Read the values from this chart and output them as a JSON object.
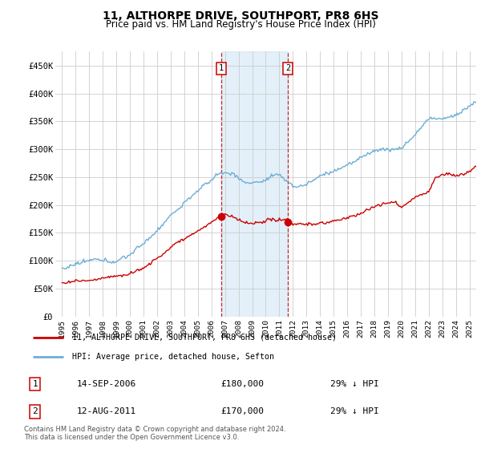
{
  "title": "11, ALTHORPE DRIVE, SOUTHPORT, PR8 6HS",
  "subtitle": "Price paid vs. HM Land Registry's House Price Index (HPI)",
  "title_fontsize": 10,
  "subtitle_fontsize": 8.5,
  "ylabel_ticks": [
    "£0",
    "£50K",
    "£100K",
    "£150K",
    "£200K",
    "£250K",
    "£300K",
    "£350K",
    "£400K",
    "£450K"
  ],
  "ytick_values": [
    0,
    50000,
    100000,
    150000,
    200000,
    250000,
    300000,
    350000,
    400000,
    450000
  ],
  "ylim": [
    0,
    475000
  ],
  "xlim_start": 1994.5,
  "xlim_end": 2025.5,
  "hpi_color": "#6baed6",
  "price_color": "#cc0000",
  "shade_color": "#cce5f5",
  "shade_alpha": 0.55,
  "vline_color": "#cc0000",
  "transaction1_x": 2006.71,
  "transaction1_y": 180000,
  "transaction2_x": 2011.62,
  "transaction2_y": 170000,
  "shade_x1": 2006.71,
  "shade_x2": 2011.62,
  "legend_line1": "11, ALTHORPE DRIVE, SOUTHPORT, PR8 6HS (detached house)",
  "legend_line2": "HPI: Average price, detached house, Sefton",
  "table_rows": [
    {
      "num": "1",
      "date": "14-SEP-2006",
      "price": "£180,000",
      "pct": "29% ↓ HPI"
    },
    {
      "num": "2",
      "date": "12-AUG-2011",
      "price": "£170,000",
      "pct": "29% ↓ HPI"
    }
  ],
  "footnote": "Contains HM Land Registry data © Crown copyright and database right 2024.\nThis data is licensed under the Open Government Licence v3.0.",
  "background_color": "#ffffff",
  "grid_color": "#cccccc"
}
